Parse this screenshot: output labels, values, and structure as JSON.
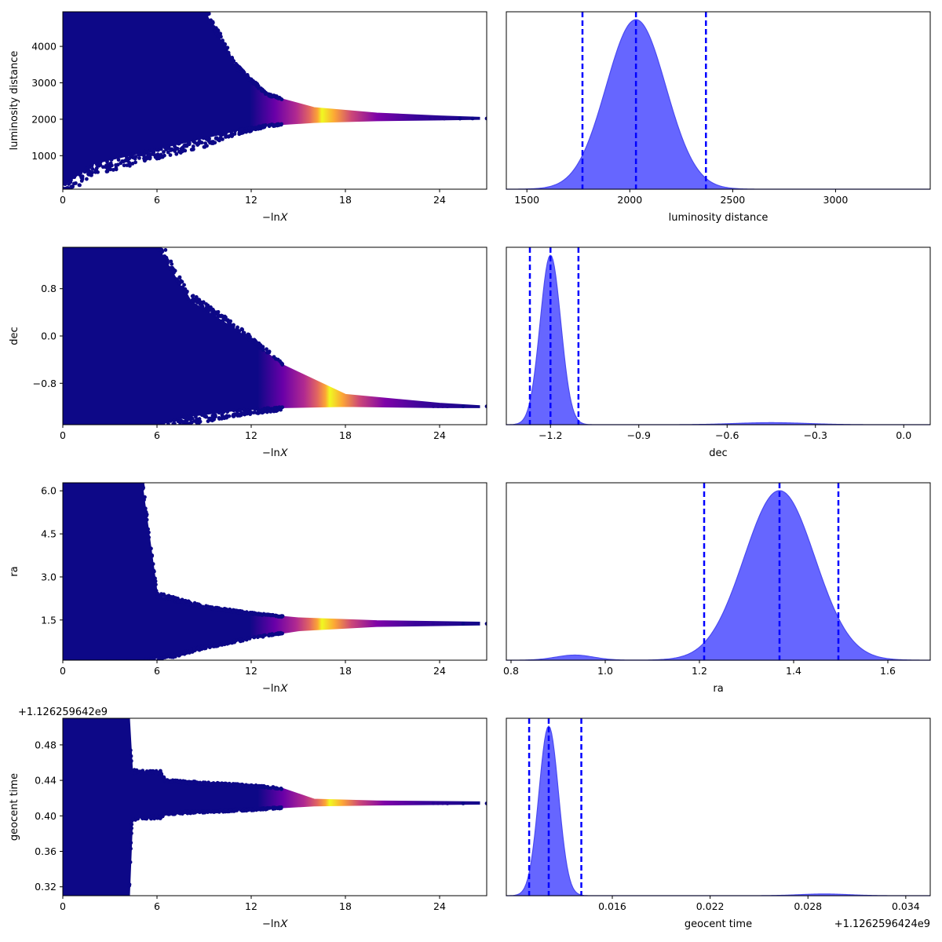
{
  "chart_data": [
    {
      "type": "scatter",
      "xlabel": "−ln𝑋",
      "ylabel": "luminosity distance",
      "xlim": [
        0,
        27
      ],
      "ylim": [
        80,
        4950
      ],
      "xticks": [
        "0",
        "6",
        "12",
        "18",
        "24"
      ],
      "xtick_values": [
        0,
        6,
        12,
        18,
        24
      ],
      "yticks": [
        "1000",
        "2000",
        "3000",
        "4000"
      ],
      "ytick_values": [
        1000,
        2000,
        3000,
        4000
      ],
      "y_offset_label": "",
      "colormap": "plasma",
      "envelope": [
        [
          0,
          200,
          4950
        ],
        [
          2,
          800,
          4950
        ],
        [
          6,
          1200,
          4950
        ],
        [
          9,
          1500,
          4950
        ],
        [
          11,
          1700,
          3400
        ],
        [
          13,
          1850,
          2650
        ],
        [
          16,
          1930,
          2300
        ],
        [
          20,
          1980,
          2150
        ],
        [
          24,
          2000,
          2070
        ],
        [
          26.5,
          2015,
          2035
        ]
      ],
      "hot_x": 16.5,
      "tail": [
        [
          24.3,
          2020
        ],
        [
          25.3,
          2018
        ],
        [
          26.1,
          2022
        ],
        [
          27,
          2020
        ]
      ]
    },
    {
      "type": "area",
      "xlabel": "luminosity distance",
      "ylabel": "",
      "xlim": [
        1400,
        3460
      ],
      "xticks": [
        "1500",
        "2000",
        "2500",
        "3000"
      ],
      "xtick_values": [
        1500,
        2000,
        2500,
        3000
      ],
      "peaks": [
        {
          "mu": 2030,
          "sigma": 145,
          "amp": 1.0
        }
      ],
      "quantile_lines": [
        1770,
        2030,
        2370
      ],
      "fill_color": "#6666ff",
      "line_color": "#0000ff"
    },
    {
      "type": "scatter",
      "xlabel": "−ln𝑋",
      "ylabel": "dec",
      "xlim": [
        0,
        27
      ],
      "ylim": [
        -1.5,
        1.5
      ],
      "xticks": [
        "0",
        "6",
        "12",
        "18",
        "24"
      ],
      "xtick_values": [
        0,
        6,
        12,
        18,
        24
      ],
      "yticks": [
        "−0.8",
        "0.0",
        "0.8"
      ],
      "ytick_values": [
        -0.8,
        0.0,
        0.8
      ],
      "y_offset_label": "",
      "colormap": "plasma",
      "envelope": [
        [
          0,
          -1.5,
          1.5
        ],
        [
          6,
          -1.5,
          1.5
        ],
        [
          8,
          -1.35,
          0.6
        ],
        [
          11,
          -1.25,
          0.1
        ],
        [
          14,
          -1.2,
          -0.5
        ],
        [
          18,
          -1.18,
          -1.0
        ],
        [
          24,
          -1.2,
          -1.15
        ],
        [
          26.5,
          -1.2,
          -1.19
        ]
      ],
      "hot_x": 17.0,
      "tail": [
        [
          24.5,
          -1.19
        ],
        [
          25.5,
          -1.19
        ],
        [
          27,
          -1.19
        ]
      ]
    },
    {
      "type": "area",
      "xlabel": "dec",
      "ylabel": "",
      "xlim": [
        -1.35,
        0.09
      ],
      "xticks": [
        "−1.2",
        "−0.9",
        "−0.6",
        "−0.3",
        "0.0"
      ],
      "xtick_values": [
        -1.2,
        -0.9,
        -0.6,
        -0.3,
        0.0
      ],
      "peaks": [
        {
          "mu": -1.2,
          "sigma": 0.035,
          "amp": 1.0
        },
        {
          "mu": -0.45,
          "sigma": 0.12,
          "amp": 0.012
        }
      ],
      "quantile_lines": [
        -1.27,
        -1.2,
        -1.105
      ],
      "fill_color": "#6666ff",
      "line_color": "#0000ff"
    },
    {
      "type": "scatter",
      "xlabel": "−ln𝑋",
      "ylabel": "ra",
      "xlim": [
        0,
        27
      ],
      "ylim": [
        0.1,
        6.28
      ],
      "xticks": [
        "0",
        "6",
        "12",
        "18",
        "24"
      ],
      "xtick_values": [
        0,
        6,
        12,
        18,
        24
      ],
      "yticks": [
        "1.5",
        "3.0",
        "4.5",
        "6.0"
      ],
      "ytick_values": [
        1.5,
        3.0,
        4.5,
        6.0
      ],
      "y_offset_label": "",
      "colormap": "plasma",
      "envelope": [
        [
          0,
          0.1,
          6.28
        ],
        [
          5,
          0.1,
          6.28
        ],
        [
          6,
          0.2,
          2.3
        ],
        [
          9,
          0.6,
          1.9
        ],
        [
          12,
          0.9,
          1.7
        ],
        [
          15,
          1.15,
          1.55
        ],
        [
          20,
          1.3,
          1.45
        ],
        [
          26.5,
          1.35,
          1.4
        ]
      ],
      "hot_x": 16.5,
      "tail": [
        [
          24.5,
          1.37
        ],
        [
          25.5,
          1.37
        ],
        [
          27,
          1.37
        ]
      ]
    },
    {
      "type": "area",
      "xlabel": "ra",
      "ylabel": "",
      "xlim": [
        0.79,
        1.69
      ],
      "xticks": [
        "0.8",
        "1.0",
        "1.2",
        "1.4",
        "1.6"
      ],
      "xtick_values": [
        0.8,
        1.0,
        1.2,
        1.4,
        1.6
      ],
      "peaks": [
        {
          "mu": 1.37,
          "sigma": 0.075,
          "amp": 1.0
        },
        {
          "mu": 0.935,
          "sigma": 0.04,
          "amp": 0.03
        }
      ],
      "quantile_lines": [
        1.21,
        1.37,
        1.495
      ],
      "fill_color": "#6666ff",
      "line_color": "#0000ff"
    },
    {
      "type": "scatter",
      "xlabel": "−ln𝑋",
      "ylabel": "geocent time",
      "xlim": [
        0,
        27
      ],
      "ylim": [
        0.31,
        0.51
      ],
      "xticks": [
        "0",
        "6",
        "12",
        "18",
        "24"
      ],
      "xtick_values": [
        0,
        6,
        12,
        18,
        24
      ],
      "yticks": [
        "0.32",
        "0.36",
        "0.40",
        "0.44",
        "0.48"
      ],
      "ytick_values": [
        0.32,
        0.36,
        0.4,
        0.44,
        0.48
      ],
      "y_offset_label": "+1.126259642e9",
      "colormap": "plasma",
      "envelope": [
        [
          0,
          0.31,
          0.51
        ],
        [
          4.2,
          0.31,
          0.51
        ],
        [
          4.4,
          0.398,
          0.448
        ],
        [
          6.3,
          0.401,
          0.447
        ],
        [
          6.5,
          0.404,
          0.438
        ],
        [
          12,
          0.408,
          0.433
        ],
        [
          14,
          0.41,
          0.43
        ],
        [
          16,
          0.412,
          0.418
        ],
        [
          20,
          0.413,
          0.416
        ],
        [
          26.5,
          0.414,
          0.415
        ]
      ],
      "hot_x": 17.0,
      "tail": [
        [
          24.5,
          0.414
        ],
        [
          25.5,
          0.414
        ],
        [
          27,
          0.414
        ]
      ]
    },
    {
      "type": "area",
      "xlabel": "geocent time",
      "ylabel": "",
      "xlim": [
        0.0095,
        0.0355
      ],
      "xticks": [
        "0.016",
        "0.022",
        "0.028",
        "0.034"
      ],
      "xtick_values": [
        0.016,
        0.022,
        0.028,
        0.034
      ],
      "x_offset_label": "+1.1262596424e9",
      "peaks": [
        {
          "mu": 0.0121,
          "sigma": 0.0006,
          "amp": 1.0
        },
        {
          "mu": 0.029,
          "sigma": 0.0015,
          "amp": 0.01
        }
      ],
      "quantile_lines": [
        0.0109,
        0.0121,
        0.0141
      ],
      "fill_color": "#6666ff",
      "line_color": "#0000ff"
    }
  ]
}
